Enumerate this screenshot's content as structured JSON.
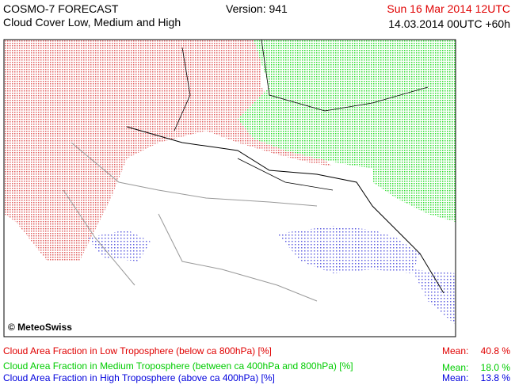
{
  "header": {
    "title": "COSMO-7 FORECAST",
    "subtitle": "Cloud Cover Low, Medium and High",
    "version": "Version: 941",
    "valid_time": "Sun 16 Mar 2014 12UTC",
    "run": "14.03.2014 00UTC +60h"
  },
  "map": {
    "credit": "© MeteoSwiss"
  },
  "legend": [
    {
      "label": "Cloud Area Fraction in Low Troposphere (below ca 800hPa) [%]",
      "mean_label": "Mean:",
      "mean": "40.8 %",
      "color": "#e00000"
    },
    {
      "label": "Cloud Area Fraction in Medium Troposphere (between ca 400hPa and 800hPa) [%]",
      "mean_label": "Mean:",
      "mean": "18.0 %",
      "color": "#00cc00"
    },
    {
      "label": "Cloud Area Fraction in High Troposphere (above ca 400hPa) [%]",
      "mean_label": "Mean:",
      "mean": "13.8 %",
      "color": "#0000dd"
    }
  ]
}
